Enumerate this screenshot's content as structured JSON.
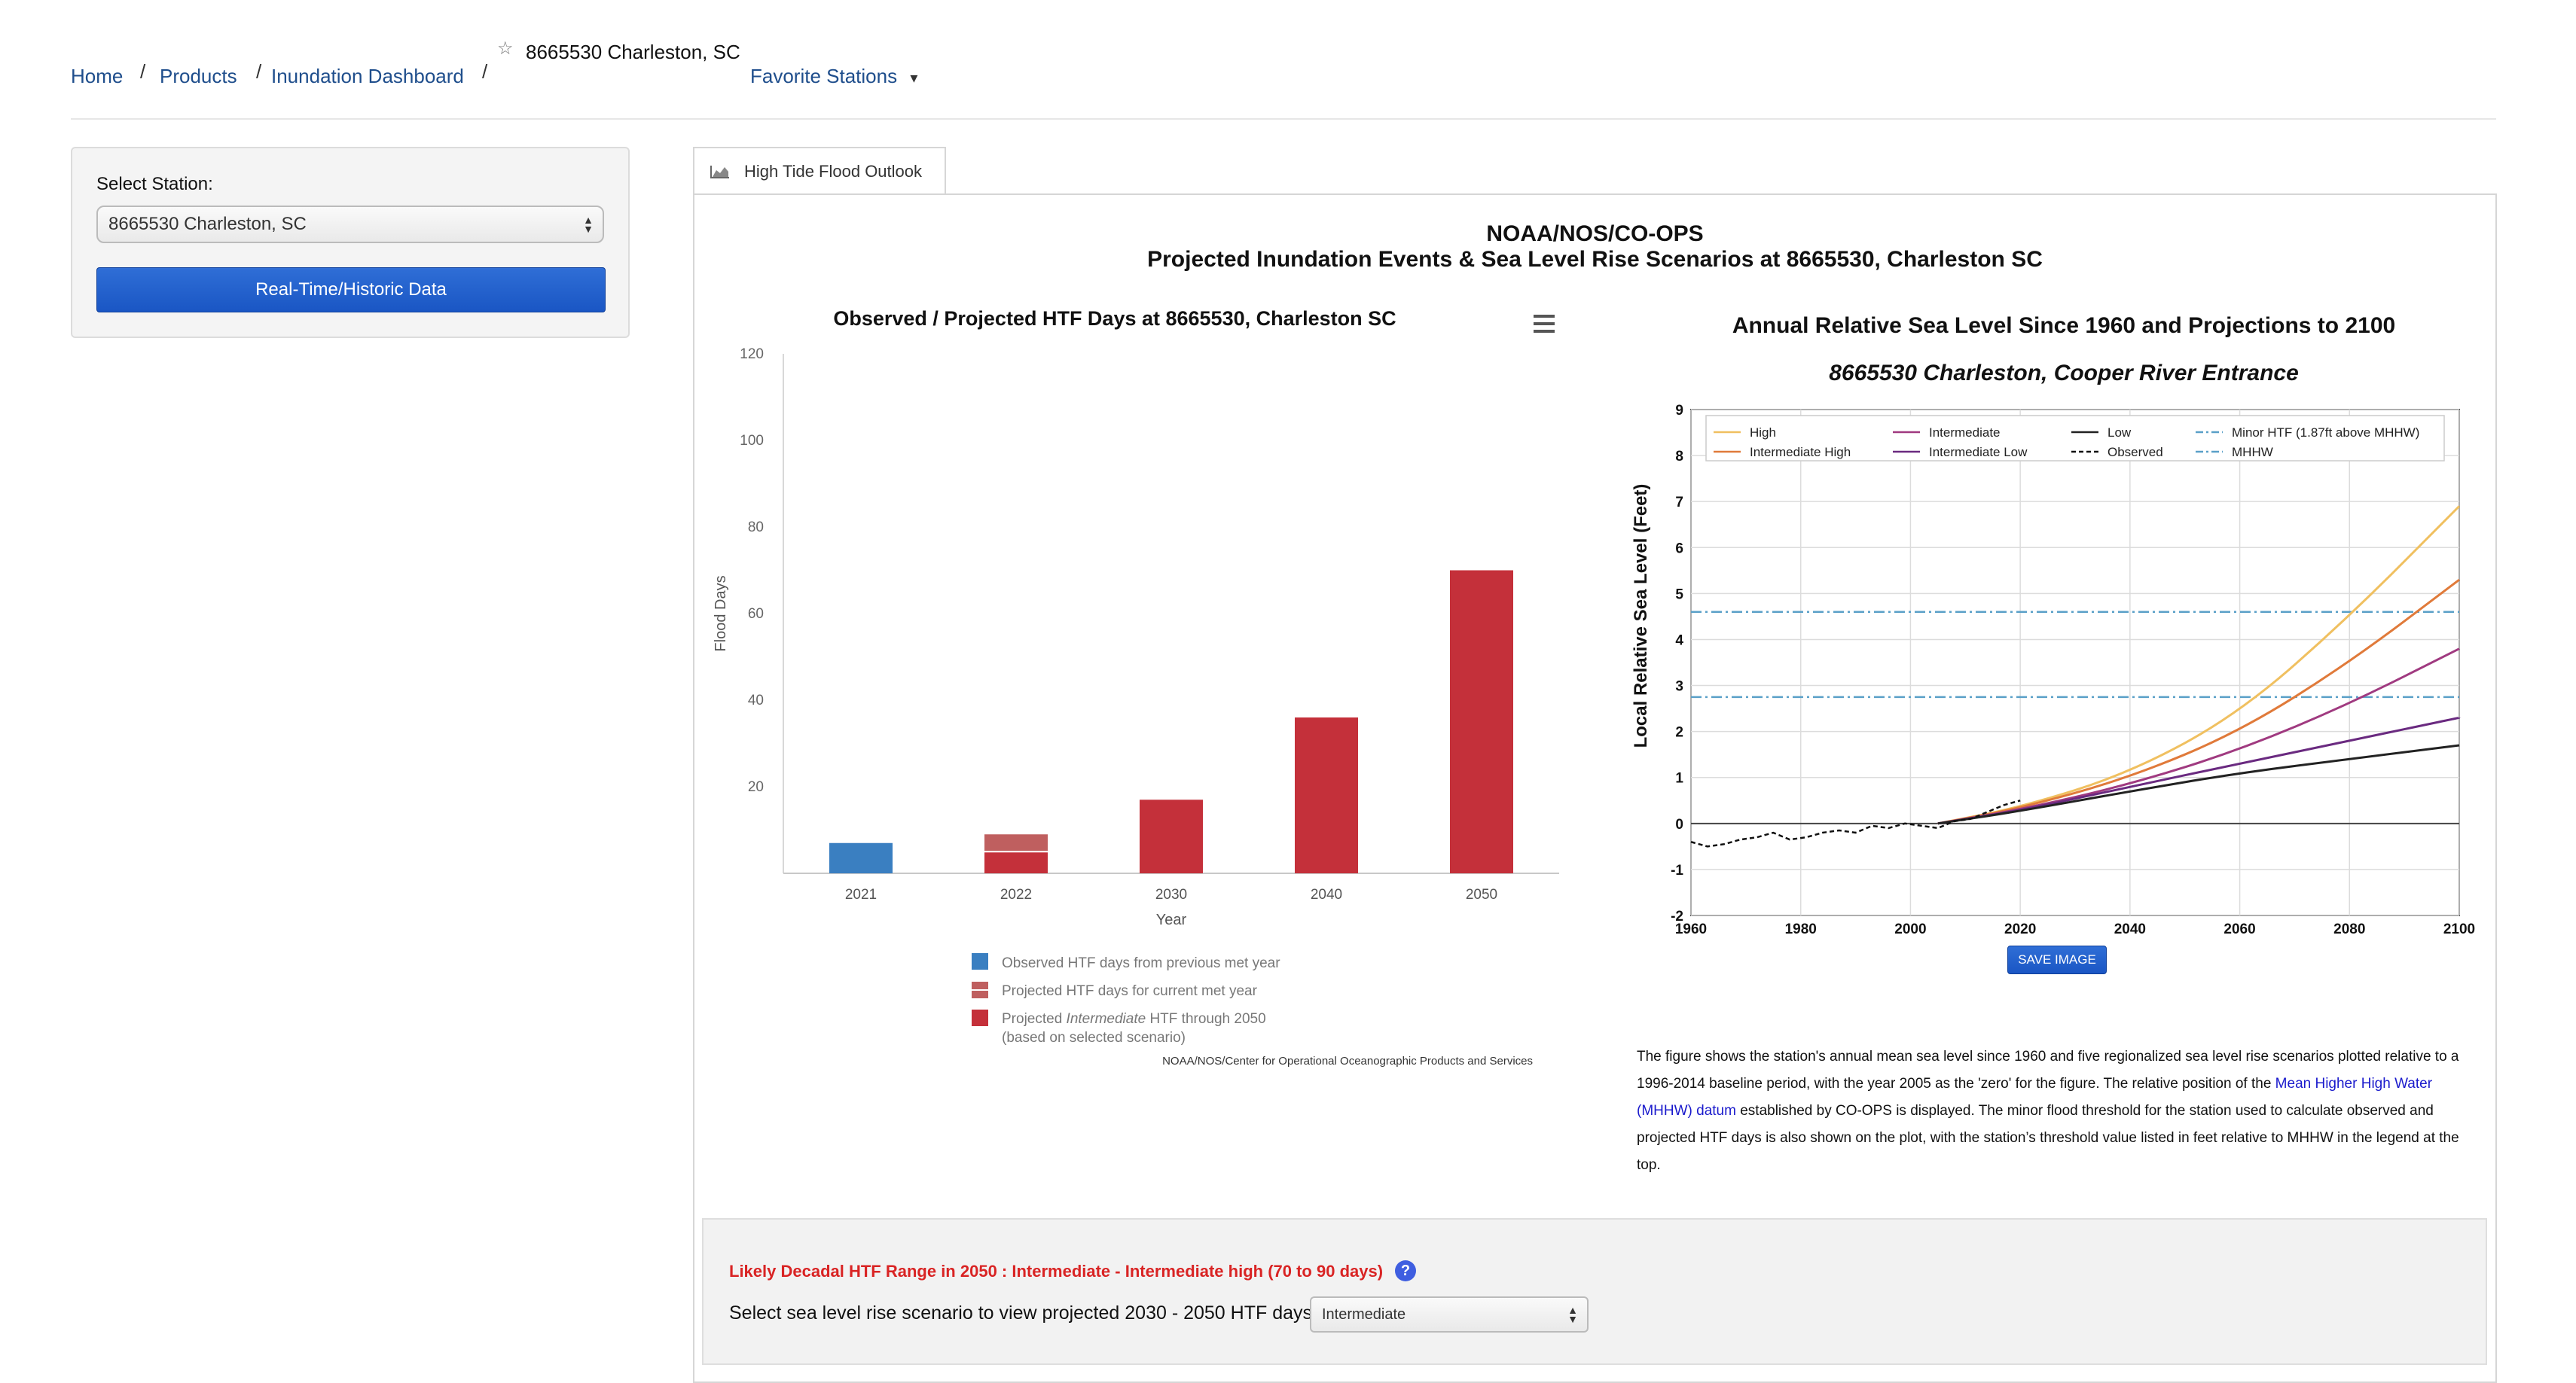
{
  "breadcrumb": {
    "home": "Home",
    "products": "Products",
    "inundation": "Inundation Dashboard",
    "station": "8665530 Charleston, SC",
    "favorites": "Favorite Stations"
  },
  "station_panel": {
    "label": "Select Station:",
    "selected": "8665530 Charleston, SC",
    "button": "Real-Time/Historic Data"
  },
  "tab": {
    "label": "High Tide Flood Outlook"
  },
  "main_title": {
    "line1": "NOAA/NOS/CO-OPS",
    "line2": "Projected Inundation Events & Sea Level Rise Scenarios at 8665530, Charleston SC"
  },
  "chart_data": [
    {
      "type": "bar",
      "title": "Observed / Projected HTF Days at 8665530, Charleston SC",
      "xlabel": "Year",
      "ylabel": "Flood Days",
      "ylim": [
        0,
        120
      ],
      "yticks": [
        "20",
        "40",
        "60",
        "80",
        "100",
        "120"
      ],
      "categories": [
        "2021",
        "2022",
        "2030",
        "2040",
        "2050"
      ],
      "series": [
        {
          "name": "Observed HTF days from previous met year",
          "values": [
            7,
            0,
            0,
            0,
            0
          ],
          "color": "#3a7fc1"
        },
        {
          "name": "Projected HTF days for current met year",
          "values": [
            0,
            9,
            0,
            0,
            0
          ],
          "color": "#bf5f5f"
        },
        {
          "name": "Projected Intermediate HTF through 2050",
          "values": [
            0,
            5,
            17,
            36,
            70
          ],
          "color": "#c4303a"
        }
      ],
      "legend": [
        "Observed HTF days from previous met year",
        "Projected HTF days for current met year",
        "Projected ",
        "Intermediate",
        " HTF through 2050",
        "(based on selected scenario)"
      ],
      "credit": "NOAA/NOS/Center for Operational Oceanographic Products and Services"
    },
    {
      "type": "line",
      "title": "Annual Relative Sea Level Since 1960 and Projections to 2100",
      "subtitle": "8665530 Charleston, Cooper River Entrance",
      "ylabel": "Local Relative Sea Level (Feet)",
      "xlim": [
        1960,
        2100
      ],
      "ylim": [
        -2,
        9
      ],
      "xticks": [
        "1960",
        "1980",
        "2000",
        "2020",
        "2040",
        "2060",
        "2080",
        "2100"
      ],
      "yticks": [
        "-2",
        "-1",
        "0",
        "1",
        "2",
        "3",
        "4",
        "5",
        "6",
        "7",
        "8",
        "9"
      ],
      "x": [
        2005,
        2020,
        2040,
        2060,
        2080,
        2100
      ],
      "series": [
        {
          "name": "High",
          "color": "#f0c060",
          "values": [
            0,
            0.35,
            1.1,
            2.4,
            4.5,
            6.9
          ]
        },
        {
          "name": "Intermediate High",
          "color": "#e07a3a",
          "values": [
            0,
            0.33,
            1.0,
            2.0,
            3.5,
            5.3
          ]
        },
        {
          "name": "Intermediate",
          "color": "#a03a80",
          "values": [
            0,
            0.3,
            0.85,
            1.6,
            2.6,
            3.8
          ]
        },
        {
          "name": "Intermediate Low",
          "color": "#6a2a80",
          "values": [
            0,
            0.28,
            0.8,
            1.3,
            1.8,
            2.3
          ]
        },
        {
          "name": "Low",
          "color": "#222222",
          "values": [
            0,
            0.27,
            0.7,
            1.1,
            1.4,
            1.7
          ]
        }
      ],
      "observed": {
        "name": "Observed",
        "x": [
          1960,
          1963,
          1966,
          1969,
          1972,
          1975,
          1978,
          1981,
          1984,
          1987,
          1990,
          1993,
          1996,
          1999,
          2002,
          2005,
          2008,
          2011,
          2014,
          2017,
          2020
        ],
        "values": [
          -0.4,
          -0.5,
          -0.45,
          -0.35,
          -0.3,
          -0.2,
          -0.35,
          -0.3,
          -0.2,
          -0.15,
          -0.2,
          -0.05,
          -0.1,
          0,
          -0.05,
          -0.1,
          0.05,
          0.1,
          0.25,
          0.4,
          0.5
        ]
      },
      "thresholds": [
        {
          "name": "Minor HTF (1.87ft above MHHW)",
          "value": 4.6,
          "color": "#5aa0c8"
        },
        {
          "name": "MHHW",
          "value": 2.75,
          "color": "#5aa0c8"
        }
      ],
      "legend": [
        "High",
        "Intermediate High",
        "Intermediate",
        "Intermediate Low",
        "Low",
        "Observed",
        "Minor HTF (1.87ft above MHHW)",
        "MHHW"
      ]
    }
  ],
  "save_image": "SAVE IMAGE",
  "description": {
    "part1": "The figure shows the station's annual mean sea level since 1960 and five regionalized sea level rise scenarios plotted relative to a 1996-2014 baseline period, with the year 2005 as the 'zero' for the figure. The relative position of the ",
    "link": "Mean Higher High Water (MHHW) datum",
    "part2": " established by CO-OPS is displayed. The minor flood threshold for the station used to calculate observed and projected HTF days is also shown on the plot, with the station’s threshold value listed in feet relative to MHHW in the legend at the top."
  },
  "bottom": {
    "htf_range": "Likely Decadal HTF Range in 2050 : Intermediate - Intermediate high (70 to 90 days)",
    "help": "?",
    "prompt": "Select sea level rise scenario to view projected 2030 - 2050 HTF days",
    "scenario": "Intermediate"
  },
  "icons": {
    "star": "☆",
    "caret": "▾",
    "menu": "≡"
  }
}
